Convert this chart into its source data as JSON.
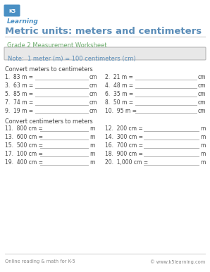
{
  "title": "Metric units: meters and centimeters",
  "subtitle": "Grade 2 Measurement Worksheet",
  "note": "Note:  1 meter (m) = 100 centimeters (cm)",
  "section1": "Convert meters to centimeters",
  "section2": "Convert centimeters to meters",
  "col1_problems": [
    "1.  83 m =",
    "3.  63 m =",
    "5.  85 m =",
    "7.  74 m =",
    "9.  19 m ="
  ],
  "col2_problems": [
    "2.  21 m =",
    "4.  48 m =",
    "6.  35 m =",
    "8.  50 m =",
    "10.  95 m ="
  ],
  "col1_unit": "cm",
  "col2_unit": "cm",
  "col1_problems2": [
    "11.  800 cm =",
    "13.  600 cm =",
    "15.  500 cm =",
    "17.  100 cm =",
    "19.  400 cm ="
  ],
  "col2_problems2": [
    "12.  200 cm =",
    "14.  300 cm =",
    "16.  700 cm =",
    "18.  900 cm =",
    "20.  1,000 cm ="
  ],
  "col1_unit2": "m",
  "col2_unit2": "m",
  "footer_left": "Online reading & math for K-5",
  "footer_right": "© www.k5learning.com",
  "bg_color": "#ffffff",
  "title_color": "#5b8db8",
  "subtitle_color": "#6aaa6a",
  "note_bg": "#e8e8e8",
  "note_border": "#b0b0b0",
  "note_text_color": "#5b8db8",
  "body_color": "#444444",
  "line_color": "#b0b0b0",
  "footer_color": "#888888",
  "logo_bg": "#4a90c4",
  "logo_text1": "K5",
  "logo_text2": "Learning"
}
